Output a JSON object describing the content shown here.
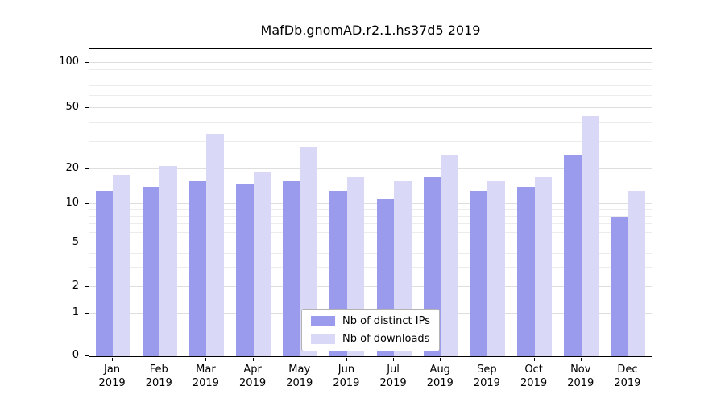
{
  "chart_data": {
    "type": "bar",
    "title": "MafDb.gnomAD.r2.1.hs37d5 2019",
    "categories": [
      "Jan",
      "Feb",
      "Mar",
      "Apr",
      "May",
      "Jun",
      "Jul",
      "Aug",
      "Sep",
      "Oct",
      "Nov",
      "Dec"
    ],
    "x_year": "2019",
    "series": [
      {
        "name": "Nb of distinct IPs",
        "color": "#9b9bee",
        "values": [
          13,
          14,
          16,
          15,
          16,
          13,
          11,
          17,
          13,
          14,
          25,
          8
        ]
      },
      {
        "name": "Nb of downloads",
        "color": "#d9d9f7",
        "values": [
          18,
          21,
          34,
          19,
          28,
          17,
          16,
          25,
          16,
          17,
          44,
          13
        ]
      }
    ],
    "yscale": "symlog",
    "yticks": [
      0,
      1,
      2,
      5,
      10,
      20,
      50,
      100
    ],
    "minor_gridlines": [
      1,
      2,
      3,
      4,
      5,
      6,
      7,
      8,
      9,
      10,
      20,
      30,
      40,
      50,
      60,
      70,
      80,
      90,
      100
    ],
    "ylim": [
      0,
      130
    ],
    "grid": true,
    "legend_position": "lower center"
  }
}
